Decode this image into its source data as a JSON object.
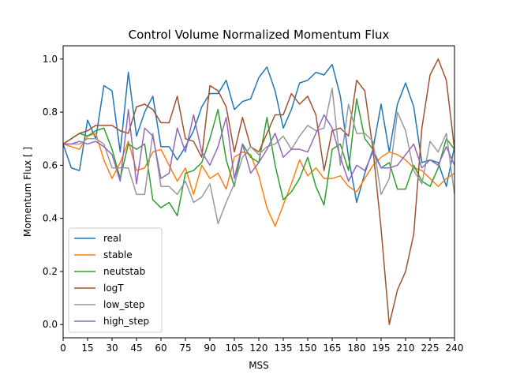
{
  "chart_data": {
    "type": "line",
    "title": "Control Volume Normalized Momentum Flux",
    "xlabel": "MSS",
    "ylabel": "Momentum Flux [ ]",
    "xlim": [
      0,
      240
    ],
    "ylim": [
      -0.05,
      1.05
    ],
    "xticks": [
      0,
      15,
      30,
      45,
      60,
      75,
      90,
      105,
      120,
      135,
      150,
      165,
      180,
      195,
      210,
      225,
      240
    ],
    "yticks": [
      0.0,
      0.2,
      0.4,
      0.6,
      0.8,
      1.0
    ],
    "ytick_labels": [
      "0.0",
      "0.2",
      "0.4",
      "0.6",
      "0.8",
      "1.0"
    ],
    "grid": false,
    "legend": "lower-left",
    "x": [
      0,
      5,
      10,
      15,
      20,
      25,
      30,
      35,
      40,
      45,
      50,
      55,
      60,
      65,
      70,
      75,
      80,
      85,
      90,
      95,
      100,
      105,
      110,
      115,
      120,
      125,
      130,
      135,
      140,
      145,
      150,
      155,
      160,
      165,
      170,
      175,
      180,
      185,
      190,
      195,
      200,
      205,
      210,
      215,
      220,
      225,
      230,
      235,
      240
    ],
    "series": [
      {
        "name": "real",
        "color": "#1f77b4",
        "values": [
          0.68,
          0.59,
          0.58,
          0.77,
          0.7,
          0.9,
          0.88,
          0.65,
          0.95,
          0.71,
          0.8,
          0.86,
          0.67,
          0.67,
          0.62,
          0.67,
          0.73,
          0.82,
          0.87,
          0.87,
          0.92,
          0.81,
          0.84,
          0.85,
          0.93,
          0.97,
          0.88,
          0.74,
          0.81,
          0.91,
          0.92,
          0.95,
          0.94,
          0.98,
          0.86,
          0.63,
          0.46,
          0.57,
          0.66,
          0.83,
          0.65,
          0.83,
          0.91,
          0.82,
          0.61,
          0.62,
          0.61,
          0.52,
          0.67
        ]
      },
      {
        "name": "stable",
        "color": "#ff7f0e",
        "values": [
          0.68,
          0.67,
          0.66,
          0.71,
          0.72,
          0.62,
          0.55,
          0.61,
          0.69,
          0.58,
          0.59,
          0.65,
          0.66,
          0.6,
          0.54,
          0.59,
          0.49,
          0.6,
          0.55,
          0.57,
          0.51,
          0.63,
          0.65,
          0.64,
          0.56,
          0.44,
          0.37,
          0.45,
          0.53,
          0.62,
          0.56,
          0.59,
          0.55,
          0.55,
          0.56,
          0.52,
          0.5,
          0.55,
          0.6,
          0.63,
          0.65,
          0.64,
          0.62,
          0.59,
          0.58,
          0.55,
          0.52,
          0.55,
          0.57
        ]
      },
      {
        "name": "neutstab",
        "color": "#2ca02c",
        "values": [
          0.68,
          0.7,
          0.72,
          0.71,
          0.73,
          0.74,
          0.66,
          0.55,
          0.68,
          0.66,
          0.68,
          0.47,
          0.44,
          0.46,
          0.41,
          0.57,
          0.58,
          0.61,
          0.7,
          0.81,
          0.62,
          0.52,
          0.68,
          0.63,
          0.61,
          0.78,
          0.6,
          0.47,
          0.5,
          0.55,
          0.63,
          0.52,
          0.45,
          0.66,
          0.68,
          0.58,
          0.85,
          0.7,
          0.66,
          0.59,
          0.61,
          0.51,
          0.51,
          0.6,
          0.54,
          0.52,
          0.59,
          0.7,
          0.66
        ]
      },
      {
        "name": "logT",
        "color": "#a0522d",
        "values": [
          0.68,
          0.7,
          0.72,
          0.73,
          0.75,
          0.75,
          0.75,
          0.73,
          0.72,
          0.82,
          0.83,
          0.81,
          0.76,
          0.76,
          0.86,
          0.7,
          0.69,
          0.63,
          0.9,
          0.88,
          0.82,
          0.65,
          0.78,
          0.67,
          0.65,
          0.72,
          0.79,
          0.79,
          0.87,
          0.83,
          0.86,
          0.79,
          0.58,
          0.73,
          0.74,
          0.71,
          0.92,
          0.88,
          0.66,
          0.36,
          0.0,
          0.13,
          0.2,
          0.34,
          0.74,
          0.94,
          1.0,
          0.92,
          0.66
        ]
      },
      {
        "name": "low_step",
        "color": "#999999",
        "values": [
          0.68,
          0.68,
          0.68,
          0.7,
          0.7,
          0.68,
          0.59,
          0.59,
          0.59,
          0.49,
          0.49,
          0.72,
          0.52,
          0.52,
          0.49,
          0.54,
          0.46,
          0.48,
          0.53,
          0.38,
          0.46,
          0.53,
          0.63,
          0.67,
          0.64,
          0.67,
          0.68,
          0.71,
          0.66,
          0.71,
          0.75,
          0.73,
          0.74,
          0.89,
          0.6,
          0.83,
          0.72,
          0.72,
          0.69,
          0.49,
          0.55,
          0.8,
          0.73,
          0.58,
          0.53,
          0.69,
          0.65,
          0.72,
          0.49
        ]
      },
      {
        "name": "high_step",
        "color": "#9467bd",
        "values": [
          0.68,
          0.68,
          0.69,
          0.68,
          0.69,
          0.67,
          0.64,
          0.54,
          0.81,
          0.53,
          0.74,
          0.71,
          0.55,
          0.57,
          0.74,
          0.65,
          0.79,
          0.65,
          0.6,
          0.67,
          0.78,
          0.55,
          0.68,
          0.57,
          0.61,
          0.66,
          0.72,
          0.63,
          0.66,
          0.66,
          0.65,
          0.72,
          0.79,
          0.74,
          0.63,
          0.54,
          0.6,
          0.58,
          0.65,
          0.59,
          0.59,
          0.6,
          0.64,
          0.68,
          0.59,
          0.62,
          0.6,
          0.67,
          0.6
        ]
      }
    ]
  }
}
